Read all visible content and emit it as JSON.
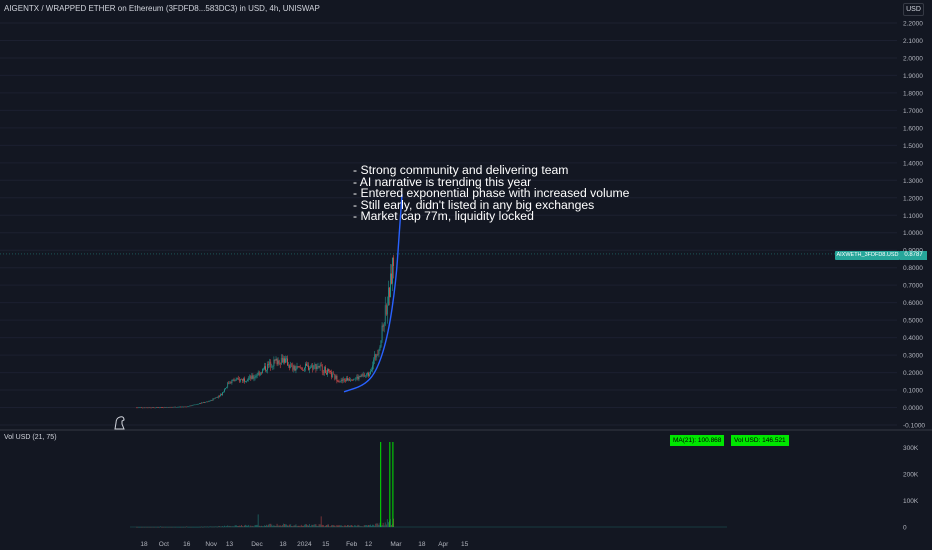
{
  "header": {
    "title": "AIGENTX / WRAPPED ETHER on Ethereum (3FDFD8...583DC3) in USD, 4h, UNISWAP",
    "currency_badge": "USD"
  },
  "annotation": {
    "lines": [
      "- Strong community and delivering team",
      "- AI narrative is trending this year",
      "- Entered exponential phase with increased volume",
      "- Still early, didn't listed in any big exchanges",
      "- Market cap 77m, liquidity locked"
    ]
  },
  "price_scale": {
    "labels": [
      "2.2000",
      "2.1000",
      "2.0000",
      "1.9000",
      "1.8000",
      "1.7000",
      "1.6000",
      "1.5000",
      "1.4000",
      "1.3000",
      "1.2000",
      "1.1000",
      "1.0000",
      "0.9000",
      "0.8000",
      "0.7000",
      "0.6000",
      "0.5000",
      "0.4000",
      "0.3000",
      "0.2000",
      "0.1000",
      "0.0000",
      "-0.1000"
    ],
    "last_price_symbol": "AIXWETH_3FDFD8.USD",
    "last_price": "0.8787"
  },
  "volume_pane": {
    "title": "Vol USD (21, 75)",
    "scale_labels": [
      "300K",
      "200K",
      "100K",
      "0"
    ],
    "ma_tag": "MA(21): 100.868",
    "vol_tag": "Vol USD: 146.521"
  },
  "time_axis": {
    "labels": [
      "18",
      "Oct",
      "16",
      "Nov",
      "13",
      "Dec",
      "18",
      "2024",
      "15",
      "Feb",
      "12",
      "Mar",
      "18",
      "Apr",
      "15"
    ]
  },
  "colors": {
    "background": "#131722",
    "up": "#26a69a",
    "down": "#ef5350",
    "trend_curve": "#2962ff",
    "vol_tag": "#00e600"
  },
  "chart_data": {
    "type": "candlestick",
    "title": "AIGENTX / WRAPPED ETHER on Ethereum (3FDFD8...583DC3) in USD, 4h, UNISWAP",
    "ylim": [
      -0.1,
      2.2
    ],
    "price_path": [
      {
        "x": "Sep 13",
        "y": 0.0
      },
      {
        "x": "Sep 25",
        "y": 0.0
      },
      {
        "x": "Oct 16",
        "y": 0.005
      },
      {
        "x": "Nov 1",
        "y": 0.04
      },
      {
        "x": "Nov 8",
        "y": 0.08
      },
      {
        "x": "Nov 13",
        "y": 0.15
      },
      {
        "x": "Nov 28",
        "y": 0.17
      },
      {
        "x": "Dec 10",
        "y": 0.25
      },
      {
        "x": "Dec 18",
        "y": 0.28
      },
      {
        "x": "Dec 25",
        "y": 0.22
      },
      {
        "x": "Jan 2",
        "y": 0.23
      },
      {
        "x": "Jan 10",
        "y": 0.24
      },
      {
        "x": "Jan 18",
        "y": 0.19
      },
      {
        "x": "Jan 25",
        "y": 0.15
      },
      {
        "x": "Feb 1",
        "y": 0.17
      },
      {
        "x": "Feb 5",
        "y": 0.17
      },
      {
        "x": "Feb 12",
        "y": 0.19
      },
      {
        "x": "Feb 16",
        "y": 0.28
      },
      {
        "x": "Feb 20",
        "y": 0.38
      },
      {
        "x": "Feb 23",
        "y": 0.55
      },
      {
        "x": "Feb 26",
        "y": 0.68
      },
      {
        "x": "Feb 29",
        "y": 0.88
      }
    ],
    "trend_curve": [
      {
        "x": "Jan 27",
        "y": 0.09
      },
      {
        "x": "Feb 10",
        "y": 0.13
      },
      {
        "x": "Feb 18",
        "y": 0.22
      },
      {
        "x": "Feb 25",
        "y": 0.42
      },
      {
        "x": "Mar 1",
        "y": 0.72
      },
      {
        "x": "Mar 3",
        "y": 0.98
      },
      {
        "x": "Mar 5",
        "y": 1.22
      }
    ],
    "volume_peaks": [
      {
        "x": "Feb 20",
        "y": 320000
      },
      {
        "x": "Feb 26",
        "y": 320000
      },
      {
        "x": "Feb 28",
        "y": 320000
      }
    ]
  }
}
